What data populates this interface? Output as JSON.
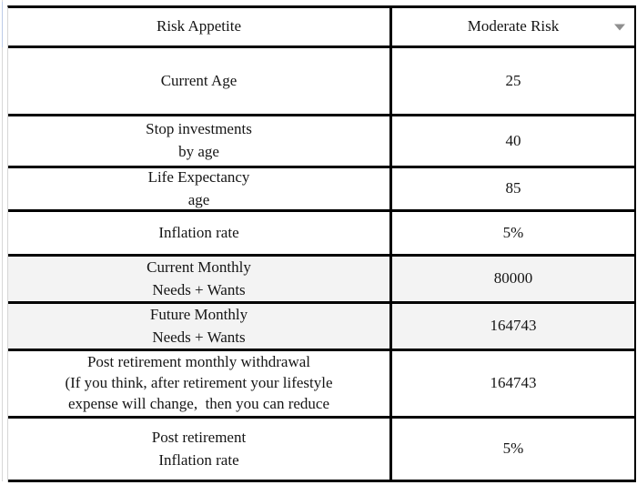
{
  "colors": {
    "border": "#000000",
    "shaded_row_bg": "#f3f3f3",
    "dropdown_arrow": "#8f8f8f",
    "text": "#151515",
    "gridline": "#d8d8d8",
    "gridline_highlight": "#bccbe8"
  },
  "table": {
    "rows": [
      {
        "label": "Risk Appetite",
        "value": "Moderate Risk",
        "has_dropdown": true,
        "shaded": false
      },
      {
        "label": "Current Age",
        "value": "25",
        "shaded": false
      },
      {
        "label": "Stop investments\nby age",
        "value": "40",
        "shaded": false
      },
      {
        "label": "Life Expectancy\nage",
        "value": "85",
        "shaded": false
      },
      {
        "label": "Inflation rate",
        "value": "5%",
        "shaded": false
      },
      {
        "label": "Current Monthly\nNeeds + Wants",
        "value": "80000",
        "shaded": true
      },
      {
        "label": "Future Monthly\nNeeds + Wants",
        "value": "164743",
        "shaded": true
      },
      {
        "label": "Post retirement monthly withdrawal\n(If you think, after retirement your lifestyle\nexpense will change,  then you can reduce",
        "value": "164743",
        "shaded": false
      },
      {
        "label": "Post retirement\nInflation rate",
        "value": "5%",
        "shaded": false
      }
    ]
  }
}
